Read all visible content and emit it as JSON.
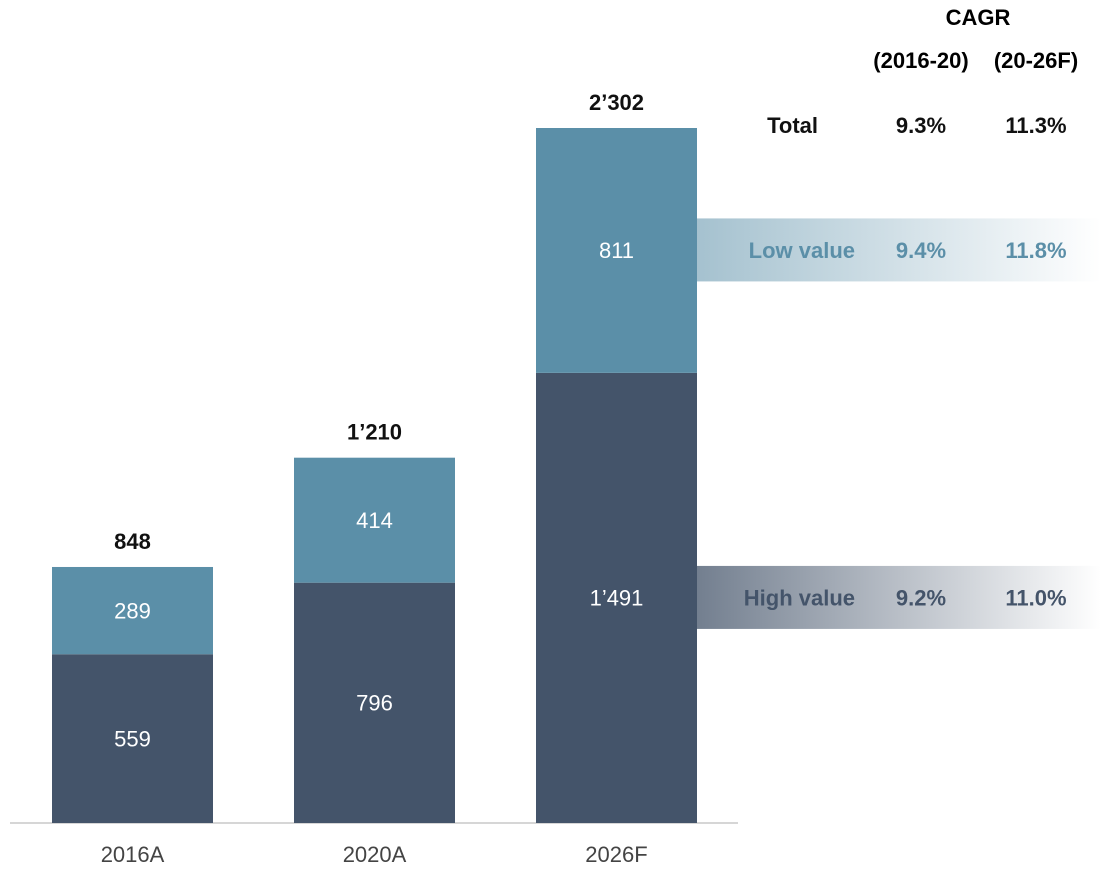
{
  "chart_data": {
    "type": "bar",
    "stacked": true,
    "categories": [
      "2016A",
      "2020A",
      "2026F"
    ],
    "series": [
      {
        "name": "High value",
        "color": "#44546a",
        "values": [
          559,
          796,
          1491
        ],
        "value_labels": [
          "559",
          "796",
          "1’491"
        ]
      },
      {
        "name": "Low value",
        "color": "#5b8fa8",
        "values": [
          289,
          414,
          811
        ],
        "value_labels": [
          "289",
          "414",
          "811"
        ]
      }
    ],
    "totals": [
      848,
      1210,
      2302
    ],
    "total_labels": [
      "848",
      "1’210",
      "2’302"
    ]
  },
  "cagr": {
    "title": "CAGR",
    "columns": [
      "(2016-20)",
      "(20-26F)"
    ],
    "total": {
      "name": "Total",
      "values": [
        "9.3%",
        "11.3%"
      ]
    },
    "series_rows": [
      [
        "9.2%",
        "11.0%"
      ],
      [
        "9.4%",
        "11.8%"
      ]
    ]
  }
}
